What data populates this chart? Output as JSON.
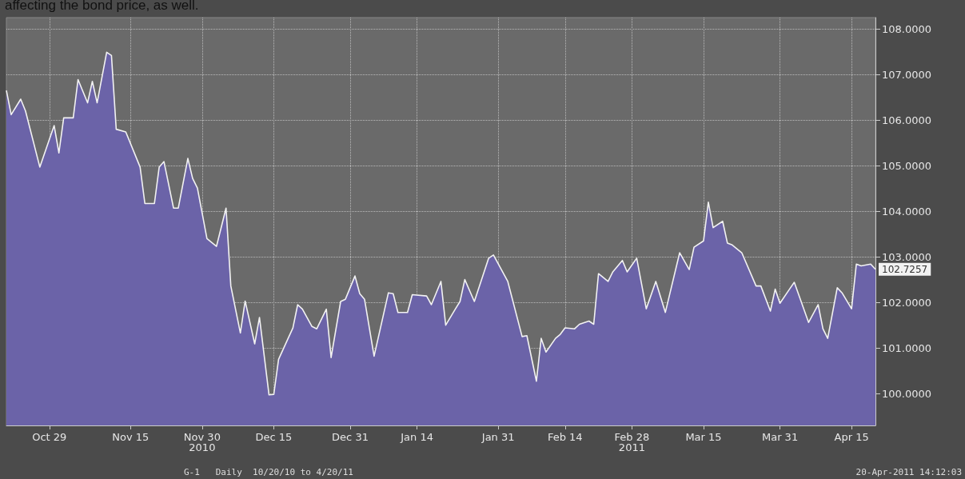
{
  "chart_data": {
    "type": "area",
    "x": [
      "2010-10-20",
      "2010-10-21",
      "2010-10-23",
      "2010-10-24",
      "2010-10-27",
      "2010-10-30",
      "2010-10-31",
      "2010-11-01",
      "2010-11-03",
      "2010-11-04",
      "2010-11-06",
      "2010-11-07",
      "2010-11-08",
      "2010-11-10",
      "2010-11-11",
      "2010-11-12",
      "2010-11-14",
      "2010-11-17",
      "2010-11-18",
      "2010-11-20",
      "2010-11-21",
      "2010-11-22",
      "2010-11-24",
      "2010-11-25",
      "2010-11-27",
      "2010-11-28",
      "2010-11-29",
      "2010-12-01",
      "2010-12-03",
      "2010-12-05",
      "2010-12-06",
      "2010-12-08",
      "2010-12-09",
      "2010-12-11",
      "2010-12-12",
      "2010-12-14",
      "2010-12-15",
      "2010-12-16",
      "2010-12-18",
      "2010-12-19",
      "2010-12-20",
      "2010-12-21",
      "2010-12-23",
      "2010-12-24",
      "2010-12-26",
      "2010-12-27",
      "2010-12-29",
      "2010-12-30",
      "2011-01-01",
      "2011-01-02",
      "2011-01-03",
      "2011-01-05",
      "2011-01-08",
      "2011-01-09",
      "2011-01-10",
      "2011-01-12",
      "2011-01-13",
      "2011-01-16",
      "2011-01-17",
      "2011-01-19",
      "2011-01-20",
      "2011-01-22",
      "2011-01-23",
      "2011-01-24",
      "2011-01-26",
      "2011-01-29",
      "2011-01-30",
      "2011-02-02",
      "2011-02-05",
      "2011-02-06",
      "2011-02-08",
      "2011-02-09",
      "2011-02-10",
      "2011-02-12",
      "2011-02-13",
      "2011-02-14",
      "2011-02-16",
      "2011-02-17",
      "2011-02-19",
      "2011-02-20",
      "2011-02-21",
      "2011-02-23",
      "2011-02-24",
      "2011-02-26",
      "2011-02-27",
      "2011-03-01",
      "2011-03-03",
      "2011-03-05",
      "2011-03-07",
      "2011-03-10",
      "2011-03-12",
      "2011-03-13",
      "2011-03-15",
      "2011-03-16",
      "2011-03-17",
      "2011-03-19",
      "2011-03-20",
      "2011-03-21",
      "2011-03-23",
      "2011-03-26",
      "2011-03-27",
      "2011-03-29",
      "2011-03-30",
      "2011-03-31",
      "2011-04-02",
      "2011-04-03",
      "2011-04-06",
      "2011-04-08",
      "2011-04-09",
      "2011-04-10",
      "2011-04-12",
      "2011-04-13",
      "2011-04-15",
      "2011-04-16",
      "2011-04-17",
      "2011-04-19",
      "2011-04-20"
    ],
    "series": [
      {
        "color": "#6b63a8",
        "values": [
          106.65,
          106.12,
          106.46,
          106.2,
          104.97,
          105.88,
          105.28,
          106.05,
          106.05,
          106.89,
          106.38,
          106.85,
          106.38,
          107.49,
          107.42,
          105.8,
          105.74,
          104.97,
          104.17,
          104.17,
          104.97,
          105.09,
          104.07,
          104.07,
          105.16,
          104.72,
          104.51,
          103.4,
          103.23,
          104.07,
          102.36,
          101.33,
          102.03,
          101.09,
          101.67,
          99.97,
          99.98,
          100.75,
          101.21,
          101.44,
          101.95,
          101.85,
          101.47,
          101.42,
          101.85,
          100.79,
          102.02,
          102.07,
          102.58,
          102.19,
          102.07,
          100.82,
          102.21,
          102.19,
          101.78,
          101.78,
          102.17,
          102.14,
          101.95,
          102.46,
          101.5,
          101.85,
          102.02,
          102.5,
          102.02,
          102.97,
          103.04,
          102.46,
          101.25,
          101.27,
          100.27,
          101.21,
          100.91,
          101.21,
          101.3,
          101.44,
          101.42,
          101.52,
          101.59,
          101.52,
          102.63,
          102.46,
          102.67,
          102.92,
          102.67,
          102.97,
          101.86,
          102.46,
          101.78,
          103.09,
          102.72,
          103.21,
          103.35,
          104.2,
          103.64,
          103.78,
          103.3,
          103.26,
          103.09,
          102.36,
          102.36,
          101.81,
          102.29,
          101.98,
          102.29,
          102.44,
          101.56,
          101.95,
          101.42,
          101.21,
          102.32,
          102.21,
          101.86,
          102.84,
          102.8,
          102.84,
          102.7257
        ]
      }
    ],
    "xlim": [
      "2010-10-20",
      "2011-04-20"
    ],
    "xticks": [
      {
        "value": "2010-10-29",
        "label": "Oct 29"
      },
      {
        "value": "2010-11-15",
        "label": "Nov 15"
      },
      {
        "value": "2010-11-30",
        "label": "Nov 30\n2010"
      },
      {
        "value": "2010-12-15",
        "label": "Dec 15"
      },
      {
        "value": "2010-12-31",
        "label": "Dec 31"
      },
      {
        "value": "2011-01-14",
        "label": "Jan 14"
      },
      {
        "value": "2011-01-31",
        "label": "Jan 31"
      },
      {
        "value": "2011-02-14",
        "label": "Feb 14"
      },
      {
        "value": "2011-02-28",
        "label": "Feb 28\n2011"
      },
      {
        "value": "2011-03-15",
        "label": "Mar 15"
      },
      {
        "value": "2011-03-31",
        "label": "Mar 31"
      },
      {
        "value": "2011-04-15",
        "label": "Apr 15"
      }
    ],
    "ylim": [
      99.3,
      108.25
    ],
    "yticks": [
      {
        "value": 100,
        "label": "100.0000"
      },
      {
        "value": 101,
        "label": "101.0000"
      },
      {
        "value": 102,
        "label": "102.0000"
      },
      {
        "value": 103,
        "label": "103.0000"
      },
      {
        "value": 104,
        "label": "104.0000"
      },
      {
        "value": 105,
        "label": "105.0000"
      },
      {
        "value": 106,
        "label": "106.0000"
      },
      {
        "value": 107,
        "label": "107.0000"
      },
      {
        "value": 108,
        "label": "108.0000"
      }
    ],
    "grid": true,
    "annotations": [
      "affecting the bond price, as well.",
      "G-1   Daily  10/20/10 to 4/20/11",
      "20-Apr-2011 14:12:03",
      {
        "text": "102.7257",
        "x": "2011-04-20",
        "y": 102.7257
      }
    ]
  }
}
